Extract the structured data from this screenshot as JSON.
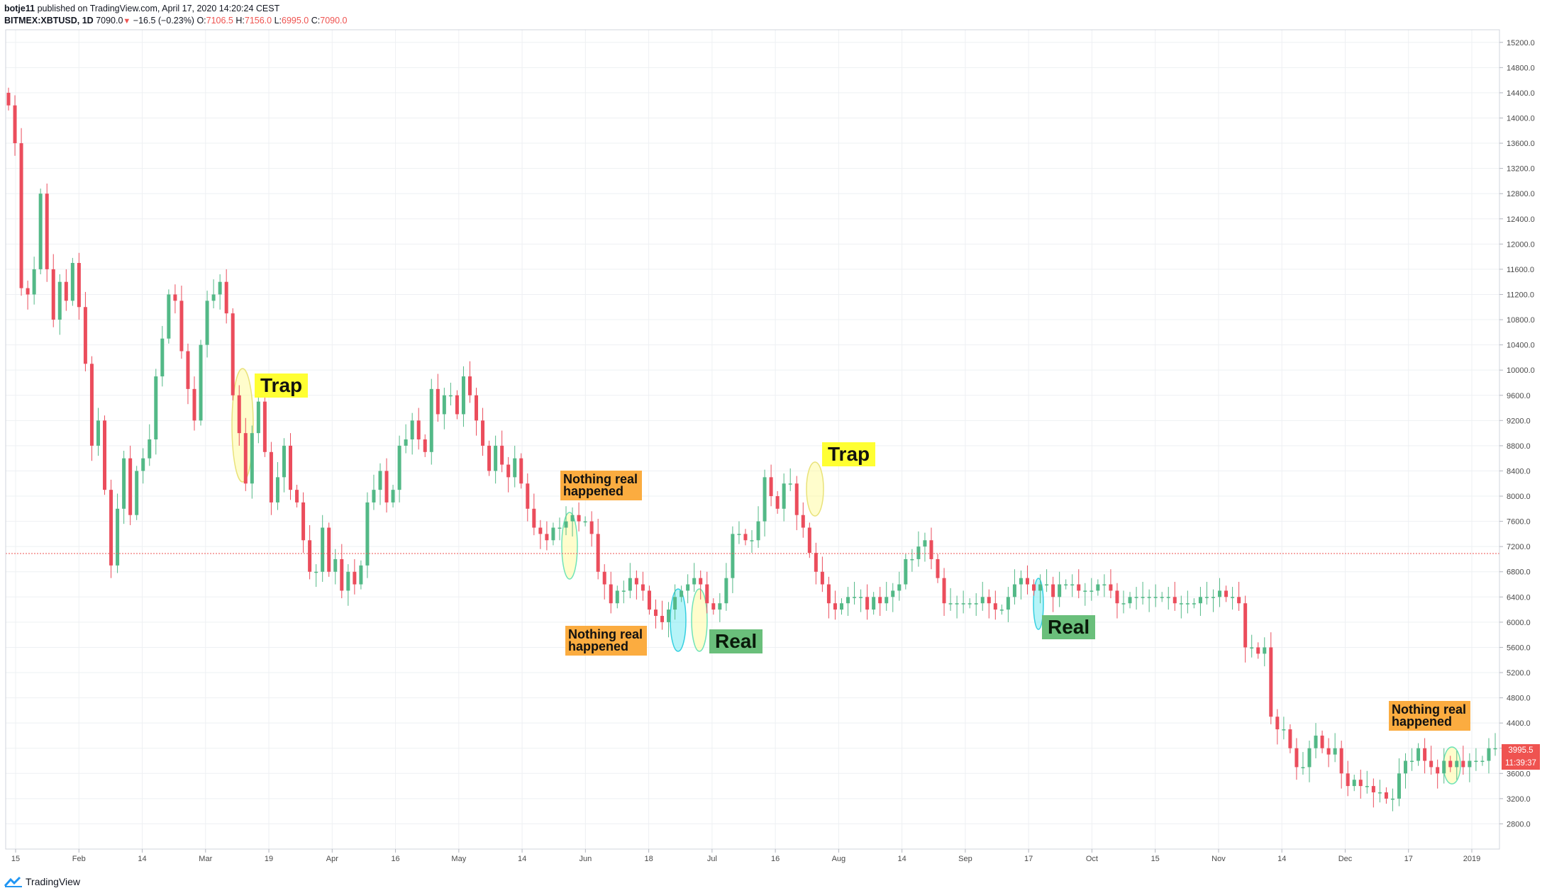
{
  "header": {
    "author": "botje11",
    "published": "published on TradingView.com, April 17, 2020 14:20:24 CEST",
    "symbol": "BITMEX:XBTUSD, 1D",
    "last": "7090.0",
    "change": "−16.5 (−0.23%)",
    "o_label": "O:",
    "o_value": "7106.5",
    "h_label": "H:",
    "h_value": "7156.0",
    "l_label": "L:",
    "l_value": "6995.0",
    "c_label": "C:",
    "c_value": "7090.0"
  },
  "footer": {
    "brand": "TradingView"
  },
  "price_tags": {
    "last_price": "3995.5",
    "countdown": "11:39:37"
  },
  "annotations": [
    {
      "kind": "trap",
      "text": "Trap"
    },
    {
      "kind": "trap",
      "text": "Trap"
    },
    {
      "kind": "real",
      "text": "Real"
    },
    {
      "kind": "real",
      "text": "Real"
    },
    {
      "kind": "nothing",
      "text": "Nothing real\nhappened"
    },
    {
      "kind": "nothing",
      "text": "Nothing real\nhappened"
    },
    {
      "kind": "nothing",
      "text": "Nothing real\nhappened"
    }
  ],
  "colors": {
    "up": "#53b987",
    "down": "#eb4d5c",
    "grid": "#eef0f3",
    "trap_ellipse": "#fffb8f",
    "real_ellipse": "#5ee6f0"
  },
  "chart_data": {
    "type": "candlestick",
    "symbol": "BITMEX:XBTUSD",
    "interval": "1D",
    "y_ticks": [
      "15200.0",
      "14800.0",
      "14400.0",
      "14000.0",
      "13600.0",
      "13200.0",
      "12800.0",
      "12400.0",
      "12000.0",
      "11600.0",
      "11200.0",
      "10800.0",
      "10400.0",
      "10000.0",
      "9600.0",
      "9200.0",
      "8800.0",
      "8400.0",
      "8000.0",
      "7600.0",
      "7200.0",
      "6800.0",
      "6400.0",
      "6000.0",
      "5600.0",
      "5200.0",
      "4800.0",
      "4400.0",
      "4000.0",
      "3600.0",
      "3200.0",
      "2800.0"
    ],
    "x_ticks": [
      "15",
      "Feb",
      "14",
      "Mar",
      "19",
      "Apr",
      "16",
      "May",
      "14",
      "Jun",
      "18",
      "Jul",
      "16",
      "Aug",
      "14",
      "Sep",
      "17",
      "Oct",
      "15",
      "Nov",
      "14",
      "Dec",
      "17",
      "2019"
    ],
    "ylim": [
      2400,
      15400
    ],
    "reference_line": 7090,
    "closes": [
      14200,
      13600,
      11300,
      11200,
      11600,
      12800,
      11600,
      10800,
      11400,
      11100,
      11700,
      11000,
      10100,
      8800,
      9200,
      8100,
      6900,
      7800,
      8600,
      7700,
      8400,
      8600,
      8900,
      9900,
      10500,
      11200,
      11100,
      10300,
      9700,
      9200,
      10400,
      11100,
      11200,
      11400,
      10900,
      9600,
      9000,
      8200,
      9000,
      9500,
      8700,
      7900,
      8300,
      8800,
      8100,
      7900,
      7300,
      6800,
      6800,
      7500,
      6800,
      7000,
      6500,
      6800,
      6600,
      6900,
      7900,
      8100,
      8400,
      7900,
      8100,
      8800,
      8900,
      9200,
      8900,
      8700,
      9700,
      9300,
      9600,
      9600,
      9300,
      9900,
      9600,
      9200,
      8800,
      8400,
      8800,
      8500,
      8300,
      8600,
      8200,
      7800,
      7500,
      7400,
      7300,
      7500,
      7500,
      7600,
      7700,
      7600,
      7600,
      7400,
      6800,
      6600,
      6300,
      6500,
      6500,
      6700,
      6600,
      6500,
      6200,
      6100,
      6000,
      6200,
      6400,
      6500,
      6600,
      6700,
      6600,
      6300,
      6200,
      6300,
      6700,
      7400,
      7400,
      7300,
      7300,
      7600,
      8300,
      8000,
      7800,
      8200,
      8200,
      7700,
      7500,
      7100,
      6800,
      6600,
      6300,
      6200,
      6300,
      6400,
      6400,
      6400,
      6200,
      6400,
      6300,
      6400,
      6500,
      6600,
      7000,
      7000,
      7200,
      7300,
      7000,
      6700,
      6300,
      6300,
      6300,
      6300,
      6300,
      6300,
      6400,
      6300,
      6200,
      6200,
      6400,
      6600,
      6700,
      6600,
      6500,
      6600,
      6600,
      6400,
      6600,
      6600,
      6600,
      6500,
      6500,
      6500,
      6600,
      6600,
      6500,
      6300,
      6300,
      6400,
      6400,
      6400,
      6400,
      6400,
      6400,
      6400,
      6300,
      6300,
      6300,
      6300,
      6400,
      6400,
      6400,
      6500,
      6400,
      6400,
      6300,
      5600,
      5600,
      5500,
      5600,
      4500,
      4300,
      4300,
      4000,
      3700,
      3700,
      4000,
      4200,
      4000,
      3900,
      4000,
      3600,
      3400,
      3500,
      3400,
      3400,
      3300,
      3300,
      3200,
      3200,
      3600,
      3800,
      3800,
      4000,
      3800,
      3700,
      3600,
      3800,
      3700,
      3800,
      3700,
      3800,
      3800,
      3800,
      4000,
      4000
    ]
  }
}
